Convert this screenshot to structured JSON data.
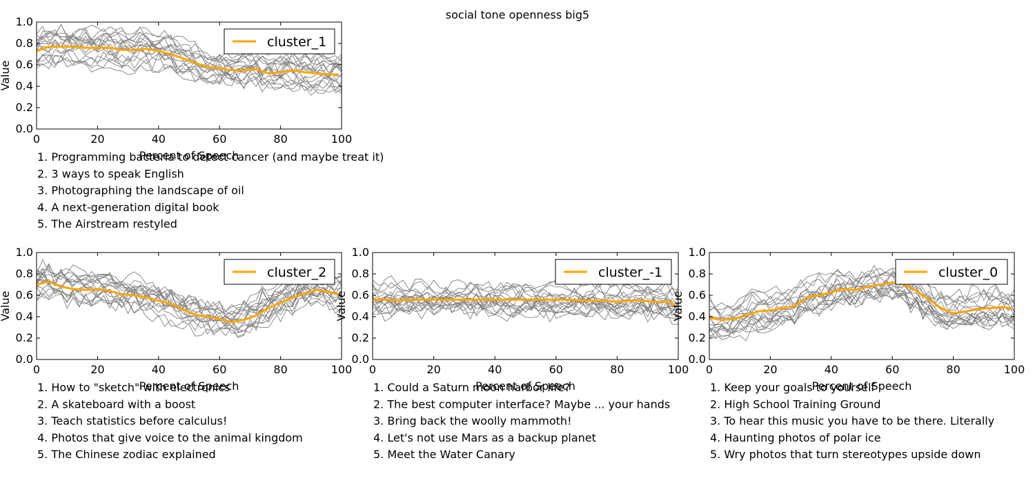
{
  "title": "social tone openness big5",
  "colors": {
    "cluster_line": "#ffa500",
    "talk_lines": "#808080"
  },
  "chart_data": [
    {
      "type": "line",
      "legend": "cluster_1",
      "legend_position": "top-right",
      "xlabel": "Percent of Speech",
      "ylabel": "Value",
      "xlim": [
        0,
        100
      ],
      "ylim": [
        0,
        1
      ],
      "x_ticks": [
        "0",
        "20",
        "40",
        "60",
        "80",
        "100"
      ],
      "y_ticks": [
        "0.0",
        "0.2",
        "0.4",
        "0.6",
        "0.8",
        "1.0"
      ],
      "x": [
        0,
        4,
        8,
        12,
        16,
        20,
        24,
        28,
        32,
        36,
        40,
        44,
        48,
        52,
        56,
        60,
        64,
        68,
        72,
        76,
        80,
        84,
        88,
        92,
        96,
        99
      ],
      "series": [
        {
          "name": "cluster_1",
          "values": [
            0.73,
            0.77,
            0.77,
            0.77,
            0.76,
            0.76,
            0.76,
            0.74,
            0.74,
            0.75,
            0.73,
            0.7,
            0.66,
            0.62,
            0.58,
            0.57,
            0.55,
            0.55,
            0.56,
            0.52,
            0.53,
            0.55,
            0.53,
            0.52,
            0.51,
            0.51
          ]
        }
      ],
      "talks": [
        "1. Programming bacteria to detect cancer (and maybe treat it)",
        "2. 3 ways to speak English",
        "3. Photographing the landscape of oil",
        "4. A next-generation digital book",
        "5. The Airstream  restyled"
      ]
    },
    {
      "type": "line",
      "legend": "cluster_2",
      "legend_position": "top-right",
      "xlabel": "Percent of Speech",
      "ylabel": "Value",
      "xlim": [
        0,
        100
      ],
      "ylim": [
        0,
        1
      ],
      "x_ticks": [
        "0",
        "20",
        "40",
        "60",
        "80",
        "100"
      ],
      "y_ticks": [
        "0.0",
        "0.2",
        "0.4",
        "0.6",
        "0.8",
        "1.0"
      ],
      "x": [
        0,
        4,
        8,
        12,
        16,
        20,
        24,
        28,
        32,
        36,
        40,
        44,
        48,
        52,
        56,
        60,
        64,
        68,
        72,
        76,
        80,
        84,
        88,
        92,
        96,
        99
      ],
      "series": [
        {
          "name": "cluster_2",
          "values": [
            0.7,
            0.73,
            0.68,
            0.66,
            0.65,
            0.66,
            0.64,
            0.61,
            0.6,
            0.58,
            0.55,
            0.52,
            0.47,
            0.42,
            0.4,
            0.38,
            0.35,
            0.37,
            0.41,
            0.48,
            0.53,
            0.58,
            0.62,
            0.65,
            0.63,
            0.61
          ]
        }
      ],
      "talks": [
        "1. How to \"sketch\" with electronics",
        "2. A skateboard  with a boost",
        "3. Teach statistics before calculus!",
        "4. Photos that give voice to the animal kingdom",
        "5. The Chinese zodiac  explained"
      ]
    },
    {
      "type": "line",
      "legend": "cluster_-1",
      "legend_position": "top-right",
      "xlabel": "Percent of Speech",
      "ylabel": "Value",
      "xlim": [
        0,
        100
      ],
      "ylim": [
        0,
        1
      ],
      "x_ticks": [
        "0",
        "20",
        "40",
        "60",
        "80",
        "100"
      ],
      "y_ticks": [
        "0.0",
        "0.2",
        "0.4",
        "0.6",
        "0.8",
        "1.0"
      ],
      "x": [
        0,
        4,
        8,
        12,
        16,
        20,
        24,
        28,
        32,
        36,
        40,
        44,
        48,
        52,
        56,
        60,
        64,
        68,
        72,
        76,
        80,
        84,
        88,
        92,
        96,
        99
      ],
      "series": [
        {
          "name": "cluster_-1",
          "values": [
            0.56,
            0.56,
            0.55,
            0.56,
            0.56,
            0.56,
            0.56,
            0.56,
            0.56,
            0.56,
            0.56,
            0.56,
            0.56,
            0.56,
            0.56,
            0.56,
            0.56,
            0.55,
            0.55,
            0.55,
            0.54,
            0.55,
            0.55,
            0.54,
            0.54,
            0.51
          ]
        }
      ],
      "talks": [
        "1. Could a Saturn moon harbor life?",
        "2. The best computer interface? Maybe ... your hands",
        "3. Bring back the woolly mammoth!",
        "4. Let's not use Mars as a backup planet",
        "5. Meet the Water Canary"
      ]
    },
    {
      "type": "line",
      "legend": "cluster_0",
      "legend_position": "top-right",
      "xlabel": "Percent of Speech",
      "ylabel": "Value",
      "xlim": [
        0,
        100
      ],
      "ylim": [
        0,
        1
      ],
      "x_ticks": [
        "0",
        "20",
        "40",
        "60",
        "80",
        "100"
      ],
      "y_ticks": [
        "0.0",
        "0.2",
        "0.4",
        "0.6",
        "0.8",
        "1.0"
      ],
      "x": [
        0,
        4,
        8,
        12,
        16,
        20,
        24,
        28,
        32,
        36,
        40,
        44,
        48,
        52,
        56,
        60,
        64,
        68,
        72,
        76,
        80,
        84,
        88,
        92,
        96,
        99
      ],
      "series": [
        {
          "name": "cluster_0",
          "values": [
            0.39,
            0.37,
            0.38,
            0.41,
            0.45,
            0.46,
            0.48,
            0.5,
            0.58,
            0.6,
            0.63,
            0.66,
            0.65,
            0.68,
            0.7,
            0.72,
            0.7,
            0.64,
            0.56,
            0.48,
            0.43,
            0.45,
            0.47,
            0.48,
            0.49,
            0.48
          ]
        }
      ],
      "talks": [
        "1. Keep your goals to yourself",
        "2. High School Training Ground",
        "3. To hear this music you have to be there. Literally",
        "4. Haunting photos of polar ice",
        "5. Wry photos that turn stereotypes upside down"
      ]
    }
  ]
}
